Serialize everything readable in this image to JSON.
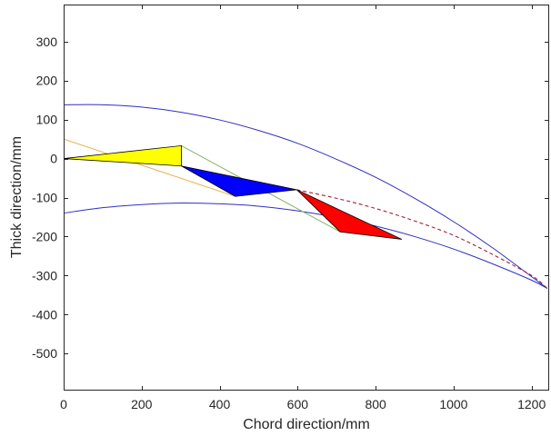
{
  "chart_data": {
    "type": "line",
    "title": "",
    "xlabel": "Chord direction/mm",
    "ylabel": "Thick direction/mm",
    "xlim": [
      0,
      1245
    ],
    "ylim": [
      -595,
      395
    ],
    "x_ticks": [
      0,
      200,
      400,
      600,
      800,
      1000,
      1200
    ],
    "y_ticks": [
      300,
      200,
      100,
      0,
      -100,
      -200,
      -300,
      -400,
      -500
    ],
    "grid": false,
    "box": true,
    "axis_color": "#262626",
    "series": [
      {
        "color": "#2f2fbf",
        "dashed": false,
        "points": [
          [
            0,
            138
          ],
          [
            100,
            138
          ],
          [
            200,
            132
          ],
          [
            300,
            119
          ],
          [
            400,
            99
          ],
          [
            500,
            72
          ],
          [
            600,
            39
          ],
          [
            700,
            -2
          ],
          [
            800,
            -48
          ],
          [
            900,
            -102
          ],
          [
            1000,
            -162
          ],
          [
            1100,
            -229
          ],
          [
            1200,
            -303
          ],
          [
            1240,
            -333
          ]
        ]
      },
      {
        "color": "#2f2fbf",
        "dashed": false,
        "points": [
          [
            0,
            -140
          ],
          [
            100,
            -126
          ],
          [
            200,
            -118
          ],
          [
            300,
            -114
          ],
          [
            400,
            -116
          ],
          [
            500,
            -122
          ],
          [
            600,
            -134
          ],
          [
            700,
            -151
          ],
          [
            800,
            -173
          ],
          [
            900,
            -200
          ],
          [
            1000,
            -232
          ],
          [
            1100,
            -270
          ],
          [
            1200,
            -312
          ],
          [
            1240,
            -333
          ]
        ]
      },
      {
        "color": "#e8b04a",
        "dashed": false,
        "points": [
          [
            0,
            50
          ],
          [
            440,
            -97
          ]
        ]
      },
      {
        "color": "#86b464",
        "dashed": false,
        "points": [
          [
            302,
            33
          ],
          [
            709,
            -188
          ]
        ]
      },
      {
        "color": "#a0203a",
        "dashed": true,
        "points": [
          [
            598,
            -80
          ],
          [
            700,
            -102
          ],
          [
            800,
            -128
          ],
          [
            900,
            -160
          ],
          [
            1000,
            -197
          ],
          [
            1100,
            -246
          ],
          [
            1200,
            -300
          ],
          [
            1240,
            -333
          ]
        ]
      }
    ],
    "polygons": [
      {
        "fill": "#ffff00",
        "edge": "#000000",
        "points": [
          [
            0,
            0
          ],
          [
            302,
            33
          ],
          [
            302,
            -19
          ]
        ]
      },
      {
        "fill": "#0000ff",
        "edge": "#000000",
        "points": [
          [
            302,
            -19
          ],
          [
            440,
            -97
          ],
          [
            598,
            -80
          ]
        ]
      },
      {
        "fill": "#ff0000",
        "edge": "#000000",
        "points": [
          [
            598,
            -80
          ],
          [
            709,
            -188
          ],
          [
            867,
            -207
          ]
        ]
      }
    ]
  }
}
